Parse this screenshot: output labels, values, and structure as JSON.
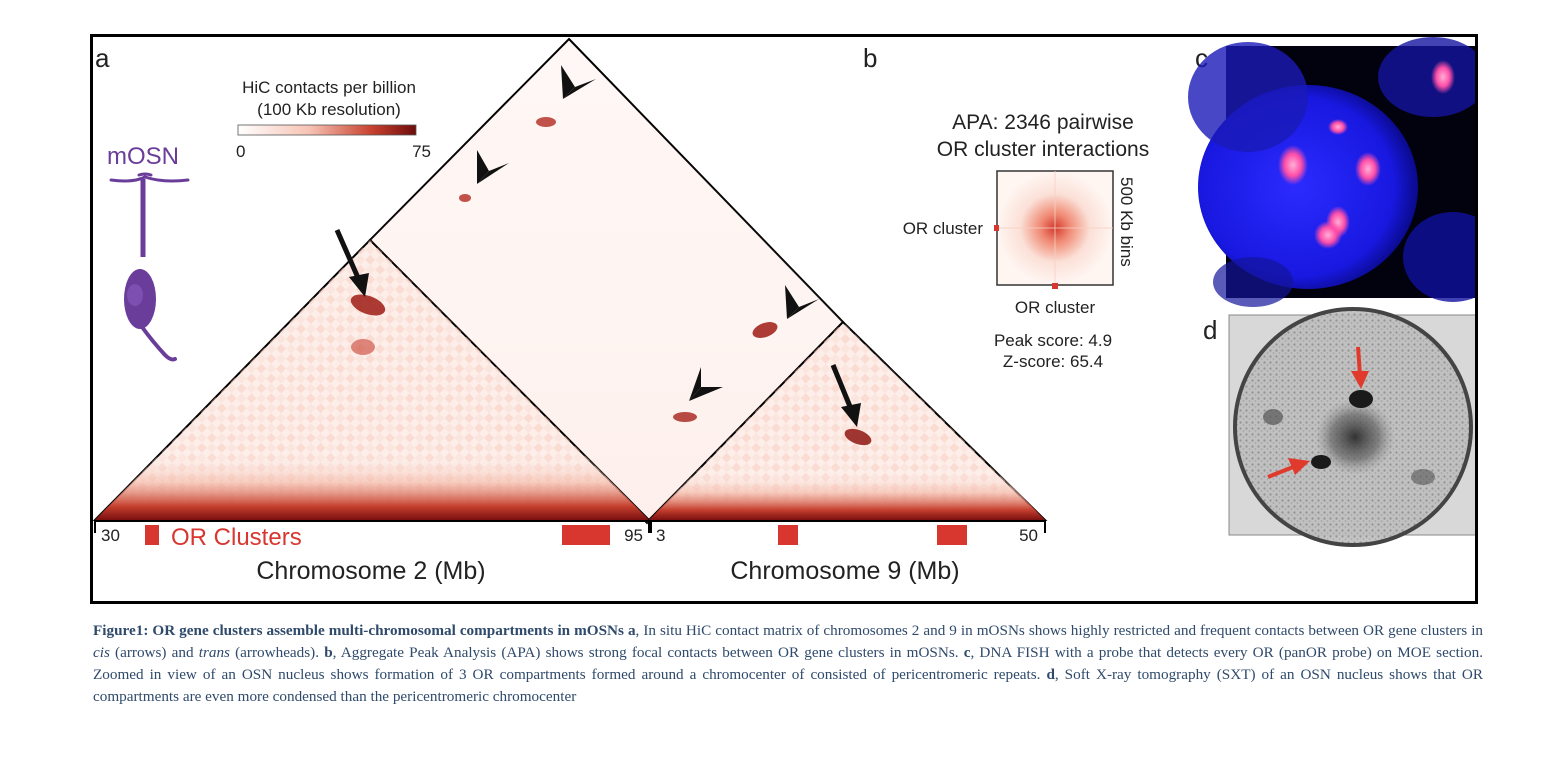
{
  "panel_letters": {
    "a": "a",
    "b": "b",
    "c": "c",
    "d": "d"
  },
  "colorbar": {
    "title_line1": "HiC contacts per billion",
    "title_line2": "(100 Kb resolution)",
    "min_label": "0",
    "max_label": "75",
    "color_low": "#ffffff",
    "color_high": "#7a0d0d"
  },
  "cell_label": "mOSN",
  "cell_color": "#6a3d9a",
  "or_color": "#d7372f",
  "chromosomes": [
    {
      "axis_label": "Chromosome 2 (Mb)",
      "start_tick": "30",
      "end_tick": "95"
    },
    {
      "axis_label": "Chromosome 9 (Mb)",
      "start_tick": "3",
      "end_tick": "50"
    }
  ],
  "or_clusters_label": "OR Clusters",
  "apa": {
    "title_line1": "APA: 2346 pairwise",
    "title_line2": "OR cluster interactions",
    "row_label": "OR cluster",
    "col_label": "OR cluster",
    "bins_label": "500 Kb bins",
    "peak_score": "Peak score: 4.9",
    "z_score": "Z-score: 65.4"
  },
  "caption": {
    "fig_title": "Figure1: OR gene clusters assemble multi-chromosomal compartments in mOSNs",
    "a_letter": "a",
    "a_text_1": ", In situ HiC contact matrix of chromosomes 2 and 9 in mOSNs shows highly restricted and frequent contacts between OR gene clusters in ",
    "cis": "cis",
    "a_text_2": " (arrows) and ",
    "trans": "trans",
    "a_text_3": " (arrowheads). ",
    "b_letter": "b",
    "b_text": ", Aggregate Peak Analysis (APA) shows strong focal contacts between OR gene clusters in mOSNs. ",
    "c_letter": "c",
    "c_text": ", DNA FISH with a probe that detects every OR (panOR probe) on MOE section. Zoomed in view of an OSN nucleus shows formation of 3 OR compartments formed around a chromocenter of consisted of pericentromeric repeats. ",
    "d_letter": "d",
    "d_text": ", Soft X-ray tomography (SXT) of an OSN nucleus shows that OR compartments are even more condensed than the pericentromeric chromocenter"
  }
}
